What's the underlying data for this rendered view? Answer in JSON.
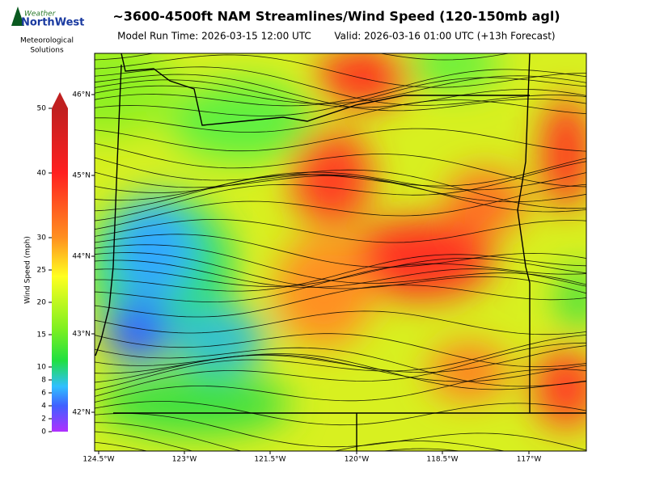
{
  "header": {
    "title": "~3600-4500ft NAM Streamlines/Wind Speed (120-150mb agl)",
    "model_run": "Model Run Time: 2026-03-15 12:00 UTC",
    "valid": "Valid: 2026-03-16 01:00 UTC  (+13h Forecast)"
  },
  "logo": {
    "top": "Weather",
    "name": "NorthWest",
    "line1": "Meteorological",
    "line2": "Solutions"
  },
  "colorbar": {
    "label": "Wind Speed (mph)",
    "range": [
      0,
      50
    ],
    "ticks": [
      0,
      2,
      4,
      6,
      8,
      10,
      15,
      20,
      25,
      30,
      40,
      50
    ]
  },
  "map": {
    "lat_labels": [
      "46°N",
      "45°N",
      "44°N",
      "43°N",
      "42°N"
    ],
    "lon_labels": [
      "124.5°W",
      "123°W",
      "121.5°W",
      "120°W",
      "118.5°W",
      "117°W"
    ]
  }
}
